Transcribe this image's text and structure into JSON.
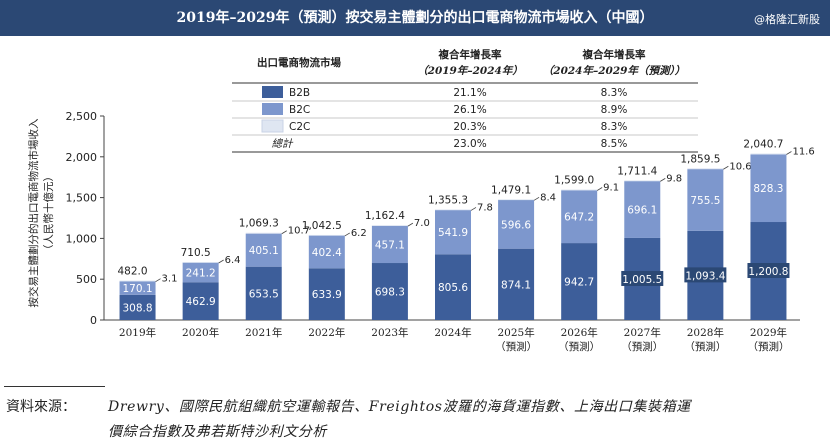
{
  "title": "2019年–2029年（預測）按交易主體劃分的出口電商物流市場收入（中國）",
  "watermark": "@格隆汇新股",
  "source": {
    "label": "資料來源：",
    "line1": "Drewry、國際民航組織航空運輸報告、Freightos波羅的海貨運指數、上海出口集裝箱運",
    "line2": "價綜合指數及弗若斯特沙利文分析"
  },
  "colors": {
    "header": "#2b4874",
    "b2b": "#3d5e9a",
    "b2c": "#7d97cd",
    "c2c": "#dfe6f2",
    "gridline": "#bfbfbf"
  },
  "chart_data": {
    "type": "bar",
    "stacked": true,
    "categories": [
      "2019年",
      "2020年",
      "2021年",
      "2022年",
      "2023年",
      "2024年",
      "2025年",
      "2026年",
      "2027年",
      "2028年",
      "2029年"
    ],
    "category_sublabels": [
      "",
      "",
      "",
      "",
      "",
      "",
      "（預測）",
      "（預測）",
      "（預測）",
      "（預測）",
      "（預測）"
    ],
    "series": [
      {
        "name": "B2B",
        "color": "#3d5e9a",
        "values": [
          308.8,
          462.9,
          653.5,
          633.9,
          698.3,
          805.6,
          874.1,
          942.7,
          1005.5,
          1093.4,
          1200.8
        ],
        "labels": [
          "308.8",
          "462.9",
          "653.5",
          "633.9",
          "698.3",
          "805.6",
          "874.1",
          "942.7",
          "1,005.5",
          "1,093.4",
          "1,200.8"
        ]
      },
      {
        "name": "B2C",
        "color": "#7d97cd",
        "values": [
          170.1,
          241.2,
          405.1,
          402.4,
          457.1,
          541.9,
          596.6,
          647.2,
          696.1,
          755.5,
          828.3
        ],
        "labels": [
          "170.1",
          "241.2",
          "405.1",
          "402.4",
          "457.1",
          "541.9",
          "596.6",
          "647.2",
          "696.1",
          "755.5",
          "828.3"
        ]
      },
      {
        "name": "C2C",
        "color": "#dfe6f2",
        "values": [
          3.1,
          6.4,
          10.7,
          6.2,
          7.0,
          7.8,
          8.4,
          9.1,
          9.8,
          10.6,
          11.6
        ],
        "labels": [
          "3.1",
          "6.4",
          "10.7",
          "6.2",
          "7.0",
          "7.8",
          "8.4",
          "9.1",
          "9.8",
          "10.6",
          "11.6"
        ]
      }
    ],
    "totals": [
      "482.0",
      "710.5",
      "1,069.3",
      "1,042.5",
      "1,162.4",
      "1,355.3",
      "1,479.1",
      "1,599.0",
      "1,711.4",
      "1,859.5",
      "2,040.7"
    ],
    "ylabel": "按交易主體劃分的出口電商物流市場收入",
    "ylabel_unit": "（人民幣十億元）",
    "yticks": [
      "0",
      "500",
      "1,000",
      "1,500",
      "2,000",
      "2,500"
    ],
    "ylim": [
      0,
      2500
    ],
    "legend_table": {
      "headers": [
        "出口電商物流市場",
        "複合年增長率",
        "（2019年–2024年）",
        "複合年增長率",
        "（2024年–2029年（預測））"
      ],
      "rows": [
        {
          "name": "B2B",
          "cagr1": "21.1%",
          "cagr2": "8.3%"
        },
        {
          "name": "B2C",
          "cagr1": "26.1%",
          "cagr2": "8.9%"
        },
        {
          "name": "C2C",
          "cagr1": "20.3%",
          "cagr2": "8.3%"
        },
        {
          "name": "總計",
          "cagr1": "23.0%",
          "cagr2": "8.5%"
        }
      ]
    }
  }
}
